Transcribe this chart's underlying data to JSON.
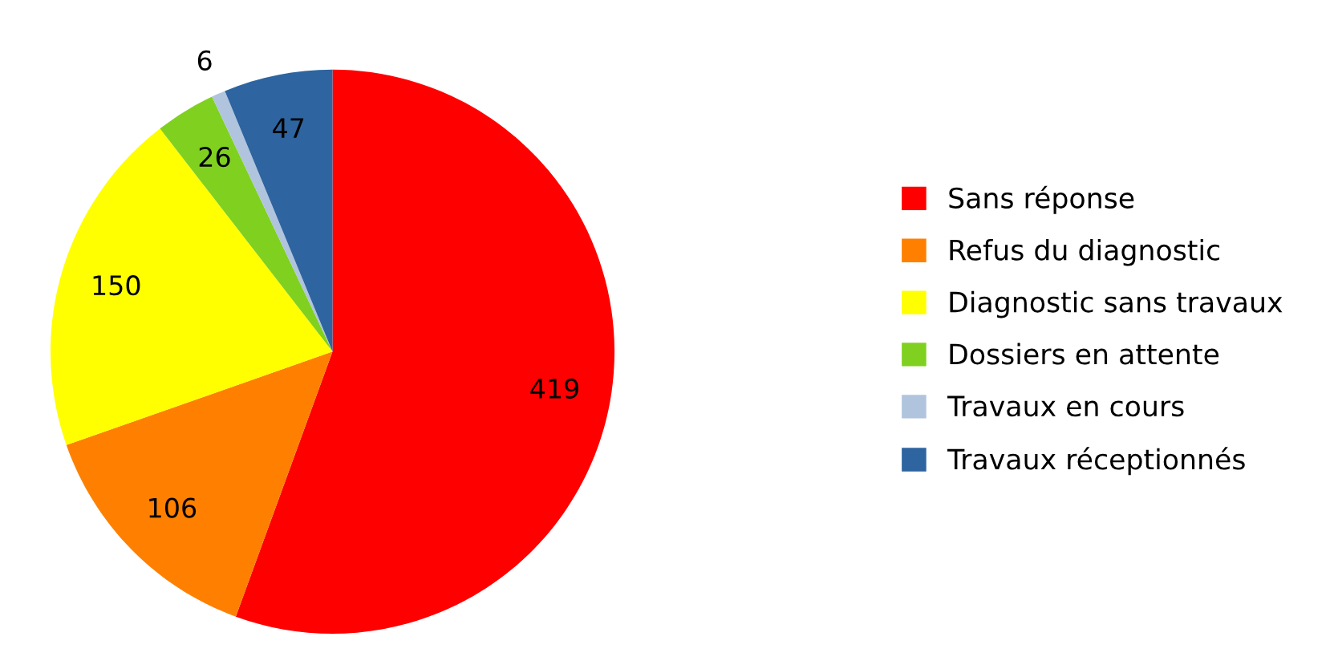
{
  "chart_data": {
    "type": "pie",
    "categories": [
      "Sans réponse",
      "Refus du diagnostic",
      "Diagnostic sans travaux",
      "Dossiers en attente",
      "Travaux en cours",
      "Travaux réceptionnés"
    ],
    "values": [
      419,
      106,
      150,
      26,
      6,
      47
    ],
    "colors": [
      "#ff0000",
      "#ff8000",
      "#ffff00",
      "#80d020",
      "#b0c4de",
      "#2e64a0"
    ],
    "data_labels": true,
    "legend": "right"
  }
}
